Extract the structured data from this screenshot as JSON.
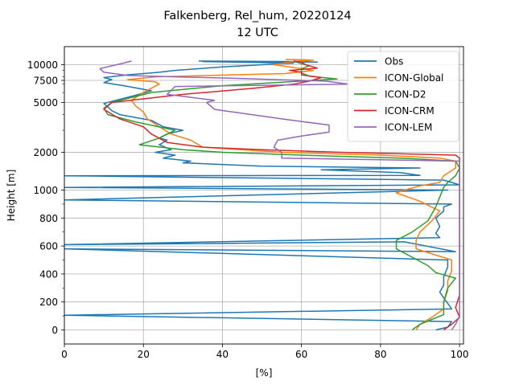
{
  "chart_data": {
    "type": "line",
    "title": "Falkenberg, Rel_hum, 20220124",
    "subtitle": "12 UTC",
    "xlabel": "[%]",
    "ylabel": "Height [m]",
    "xlim": [
      0,
      101
    ],
    "grid": true,
    "legend_position": "top-right",
    "x_ticks": [
      0,
      20,
      40,
      60,
      80,
      100
    ],
    "y_axis_note": "piecewise scale: linear 0-1000 m, logarithmic above 1000 m",
    "y_ticks": [
      {
        "value": 0,
        "label": "0"
      },
      {
        "value": 200,
        "label": "200"
      },
      {
        "value": 400,
        "label": "400"
      },
      {
        "value": 600,
        "label": "600"
      },
      {
        "value": 800,
        "label": "800"
      },
      {
        "value": 1000,
        "label": "1000"
      },
      {
        "value": 2000,
        "label": "2000"
      },
      {
        "value": 5000,
        "label": "5000"
      },
      {
        "value": 7500,
        "label": "7500"
      },
      {
        "value": 10000,
        "label": "10000"
      }
    ],
    "series": [
      {
        "name": "Obs",
        "color": "#1f77b4",
        "points": [
          [
            94,
            0
          ],
          [
            97,
            20
          ],
          [
            98,
            60
          ],
          [
            0,
            105
          ],
          [
            98,
            150
          ],
          [
            97,
            190
          ],
          [
            96,
            230
          ],
          [
            95,
            270
          ],
          [
            96,
            320
          ],
          [
            96,
            380
          ],
          [
            97,
            450
          ],
          [
            97,
            500
          ],
          [
            0,
            580
          ],
          [
            99,
            560
          ],
          [
            86,
            630
          ],
          [
            0,
            610
          ],
          [
            95,
            660
          ],
          [
            94,
            690
          ],
          [
            95,
            740
          ],
          [
            94,
            800
          ],
          [
            96,
            850
          ],
          [
            96,
            880
          ],
          [
            98,
            900
          ],
          [
            0,
            930
          ],
          [
            97,
            1000
          ],
          [
            0,
            1050
          ],
          [
            100,
            1100
          ],
          [
            98,
            1150
          ],
          [
            96,
            1200
          ],
          [
            0,
            1300
          ],
          [
            90,
            1310
          ],
          [
            85,
            1380
          ],
          [
            65,
            1450
          ],
          [
            90,
            1500
          ],
          [
            50,
            1550
          ],
          [
            30,
            1650
          ],
          [
            32,
            1700
          ],
          [
            25,
            1800
          ],
          [
            28,
            1900
          ],
          [
            23,
            2000
          ],
          [
            27,
            2100
          ],
          [
            24,
            2300
          ],
          [
            26,
            2500
          ],
          [
            24,
            2600
          ],
          [
            26,
            2800
          ],
          [
            30,
            3000
          ],
          [
            25,
            3200
          ],
          [
            22,
            3600
          ],
          [
            14,
            4000
          ],
          [
            12,
            4300
          ],
          [
            11,
            4600
          ],
          [
            10,
            4900
          ],
          [
            13,
            5200
          ],
          [
            18,
            5700
          ],
          [
            22,
            6200
          ],
          [
            15,
            6800
          ],
          [
            10,
            7200
          ],
          [
            12,
            7600
          ],
          [
            10,
            7900
          ],
          [
            16,
            8300
          ],
          [
            22,
            8600
          ],
          [
            24,
            8700
          ],
          [
            28,
            9000
          ],
          [
            40,
            9600
          ],
          [
            55,
            10200
          ],
          [
            58,
            10300
          ],
          [
            35,
            10600
          ],
          [
            64,
            10500
          ],
          [
            59,
            10600
          ],
          [
            34,
            10700
          ]
        ]
      },
      {
        "name": "ICON-Global",
        "color": "#ff7f0e",
        "points": [
          [
            89,
            0
          ],
          [
            90,
            40
          ],
          [
            93,
            90
          ],
          [
            96,
            150
          ],
          [
            96,
            200
          ],
          [
            97,
            280
          ],
          [
            97,
            350
          ],
          [
            98,
            420
          ],
          [
            98,
            500
          ],
          [
            89,
            580
          ],
          [
            89,
            640
          ],
          [
            90,
            700
          ],
          [
            93,
            780
          ],
          [
            95,
            850
          ],
          [
            90,
            920
          ],
          [
            84,
            980
          ],
          [
            87,
            1020
          ],
          [
            90,
            1080
          ],
          [
            95,
            1150
          ],
          [
            96,
            1300
          ],
          [
            99,
            1500
          ],
          [
            99,
            1700
          ],
          [
            95,
            1800
          ],
          [
            80,
            1900
          ],
          [
            55,
            2000
          ],
          [
            35,
            2200
          ],
          [
            32,
            2500
          ],
          [
            27,
            2800
          ],
          [
            24,
            3200
          ],
          [
            21,
            3700
          ],
          [
            20,
            4200
          ],
          [
            18,
            4700
          ],
          [
            17,
            5200
          ],
          [
            20,
            6000
          ],
          [
            24,
            7000
          ],
          [
            23,
            7300
          ],
          [
            16,
            7600
          ],
          [
            23,
            8000
          ],
          [
            56,
            8500
          ],
          [
            63,
            9000
          ],
          [
            53,
            10000
          ],
          [
            58,
            10600
          ],
          [
            63,
            10900
          ],
          [
            56,
            11000
          ]
        ]
      },
      {
        "name": "ICON-D2",
        "color": "#2ca02c",
        "points": [
          [
            88,
            0
          ],
          [
            90,
            40
          ],
          [
            96,
            110
          ],
          [
            96,
            200
          ],
          [
            97,
            300
          ],
          [
            99,
            370
          ],
          [
            94,
            410
          ],
          [
            92,
            460
          ],
          [
            88,
            520
          ],
          [
            84,
            580
          ],
          [
            84,
            640
          ],
          [
            88,
            700
          ],
          [
            92,
            780
          ],
          [
            94,
            880
          ],
          [
            95,
            950
          ],
          [
            96,
            1050
          ],
          [
            97,
            1150
          ],
          [
            99,
            1300
          ],
          [
            100,
            1500
          ],
          [
            99,
            1700
          ],
          [
            85,
            1800
          ],
          [
            60,
            1900
          ],
          [
            40,
            2000
          ],
          [
            30,
            2100
          ],
          [
            19,
            2300
          ],
          [
            24,
            2600
          ],
          [
            28,
            3000
          ],
          [
            18,
            3500
          ],
          [
            11,
            4000
          ],
          [
            10,
            4500
          ],
          [
            12,
            5000
          ],
          [
            22,
            6000
          ],
          [
            40,
            6800
          ],
          [
            57,
            7300
          ],
          [
            69,
            7700
          ],
          [
            62,
            8100
          ],
          [
            60,
            8600
          ],
          [
            60,
            9300
          ],
          [
            62,
            9800
          ],
          [
            59,
            10400
          ]
        ]
      },
      {
        "name": "ICON-CRM",
        "color": "#d62728",
        "points": [
          [
            96,
            0
          ],
          [
            98,
            40
          ],
          [
            100,
            90
          ],
          [
            99,
            160
          ],
          [
            100,
            250
          ],
          [
            100,
            400
          ],
          [
            100,
            600
          ],
          [
            100,
            800
          ],
          [
            100,
            1000
          ],
          [
            100,
            1200
          ],
          [
            100,
            1500
          ],
          [
            100,
            1800
          ],
          [
            99,
            1900
          ],
          [
            70,
            2000
          ],
          [
            50,
            2100
          ],
          [
            35,
            2200
          ],
          [
            26,
            2400
          ],
          [
            22,
            2800
          ],
          [
            20,
            3200
          ],
          [
            14,
            3700
          ],
          [
            10,
            4400
          ],
          [
            12,
            5000
          ],
          [
            30,
            5800
          ],
          [
            48,
            6500
          ],
          [
            58,
            7000
          ],
          [
            62,
            7400
          ],
          [
            65,
            7900
          ],
          [
            60,
            8300
          ],
          [
            60,
            8700
          ],
          [
            57,
            9000
          ],
          [
            64,
            9400
          ],
          [
            61,
            10000
          ],
          [
            60,
            10500
          ],
          [
            58,
            10700
          ]
        ]
      },
      {
        "name": "ICON-LEM",
        "color": "#9467bd",
        "points": [
          [
            98,
            0
          ],
          [
            99,
            40
          ],
          [
            100,
            100
          ],
          [
            100,
            200
          ],
          [
            100,
            350
          ],
          [
            100,
            500
          ],
          [
            100,
            700
          ],
          [
            100,
            900
          ],
          [
            100,
            1100
          ],
          [
            100,
            1400
          ],
          [
            100,
            1700
          ],
          [
            55,
            1800
          ],
          [
            55,
            2000
          ],
          [
            53,
            2200
          ],
          [
            54,
            2500
          ],
          [
            60,
            2700
          ],
          [
            67,
            2900
          ],
          [
            67,
            3300
          ],
          [
            55,
            3700
          ],
          [
            38,
            4400
          ],
          [
            36,
            5000
          ],
          [
            38,
            5200
          ],
          [
            26,
            5800
          ],
          [
            28,
            6700
          ],
          [
            72,
            7000
          ],
          [
            66,
            7400
          ],
          [
            42,
            7800
          ],
          [
            28,
            8000
          ],
          [
            16,
            8200
          ],
          [
            10,
            8700
          ],
          [
            9,
            9300
          ],
          [
            12,
            9800
          ],
          [
            15,
            10300
          ],
          [
            17,
            10700
          ]
        ]
      }
    ]
  }
}
